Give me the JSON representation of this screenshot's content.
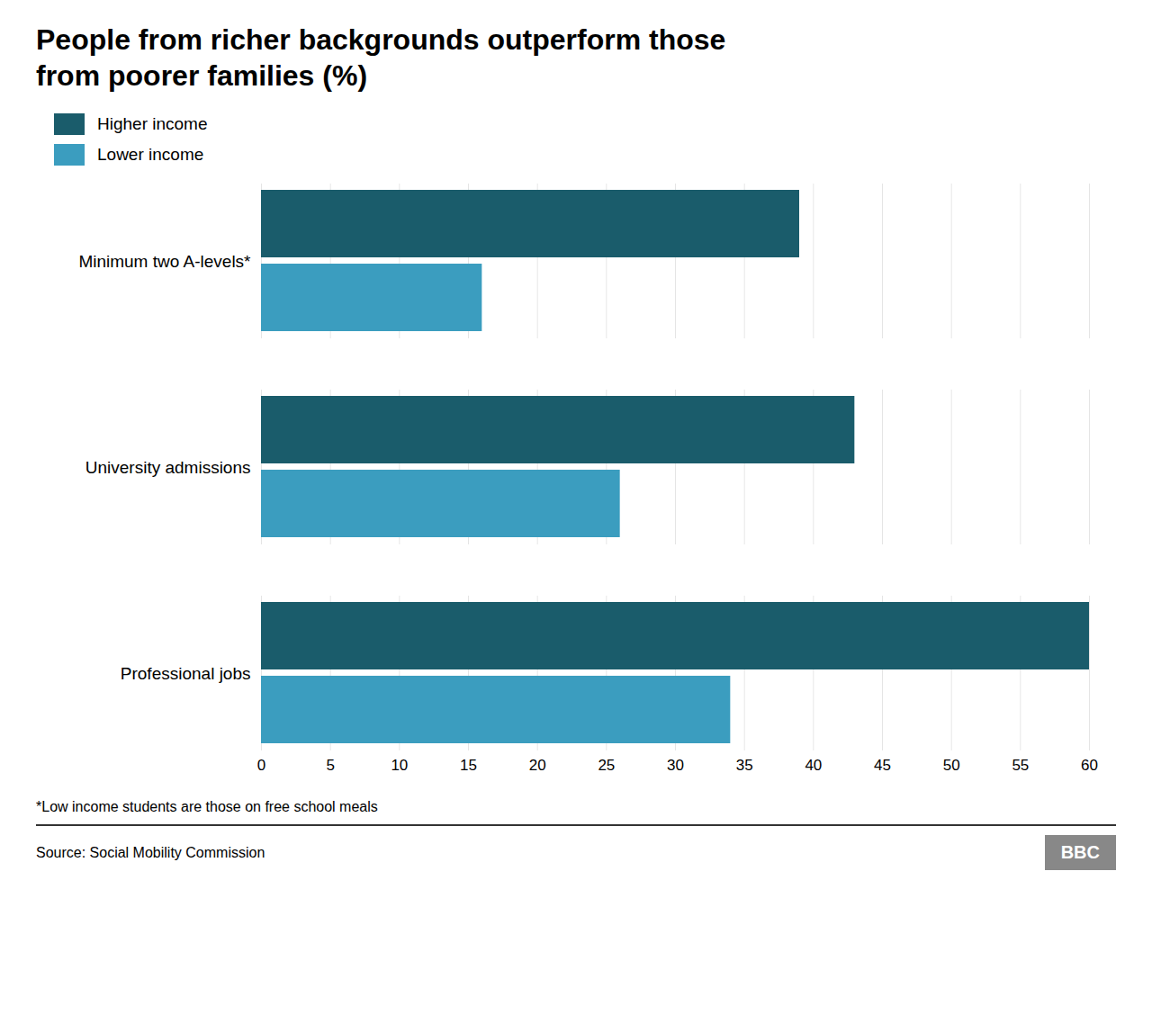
{
  "chart_data": {
    "type": "bar",
    "orientation": "horizontal",
    "title": "People from richer backgrounds outperform those\nfrom poorer families (%)",
    "categories": [
      "Professional jobs",
      "University admissions",
      "Minimum two A-levels*"
    ],
    "series": [
      {
        "name": "Higher income",
        "color": "#1a5c6b",
        "values": [
          60,
          43,
          39
        ]
      },
      {
        "name": "Lower income",
        "color": "#3b9dbf",
        "values": [
          34,
          26,
          16
        ]
      }
    ],
    "xlim": [
      0,
      60
    ],
    "xticks": [
      0,
      5,
      10,
      15,
      20,
      25,
      30,
      35,
      40,
      45,
      50,
      55,
      60
    ],
    "grid": true,
    "legend": "upper left",
    "annotations": [
      "*Low income students are those on free school meals",
      "Source: Social Mobility Commission",
      "BBC"
    ]
  }
}
